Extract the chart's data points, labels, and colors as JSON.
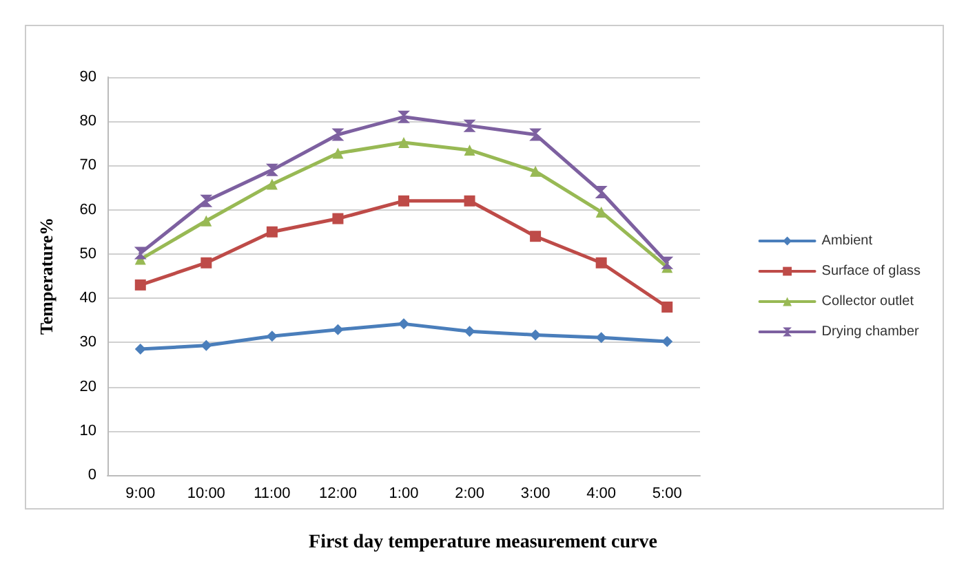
{
  "chart_data": {
    "type": "line",
    "title": "First day temperature measurement curve",
    "ylabel": "Temperature%",
    "categories": [
      "9:00",
      "10:00",
      "11:00",
      "12:00",
      "1:00",
      "2:00",
      "3:00",
      "4:00",
      "5:00"
    ],
    "series": [
      {
        "name": "Ambient",
        "color": "#4a7ebb",
        "marker": "diamond",
        "values": [
          28.5,
          29.3,
          31.4,
          32.9,
          34.2,
          32.5,
          31.7,
          31.1,
          30.2
        ]
      },
      {
        "name": "Surface of glass",
        "color": "#be4b48",
        "marker": "square",
        "values": [
          43,
          48,
          55,
          58,
          62,
          62,
          54,
          48,
          38
        ]
      },
      {
        "name": "Collector outlet",
        "color": "#98b954",
        "marker": "triangle",
        "values": [
          48.8,
          57.5,
          65.8,
          72.8,
          75.2,
          73.5,
          68.7,
          59.5,
          47
        ]
      },
      {
        "name": "Drying chamber",
        "color": "#7d60a0",
        "marker": "cross",
        "values": [
          50.2,
          62,
          69,
          77,
          81,
          79,
          77,
          64,
          48
        ]
      }
    ],
    "ylim": [
      0,
      90
    ],
    "yticks": [
      0,
      10,
      20,
      30,
      40,
      50,
      60,
      70,
      80,
      90
    ],
    "grid": "y",
    "legend": "right"
  }
}
